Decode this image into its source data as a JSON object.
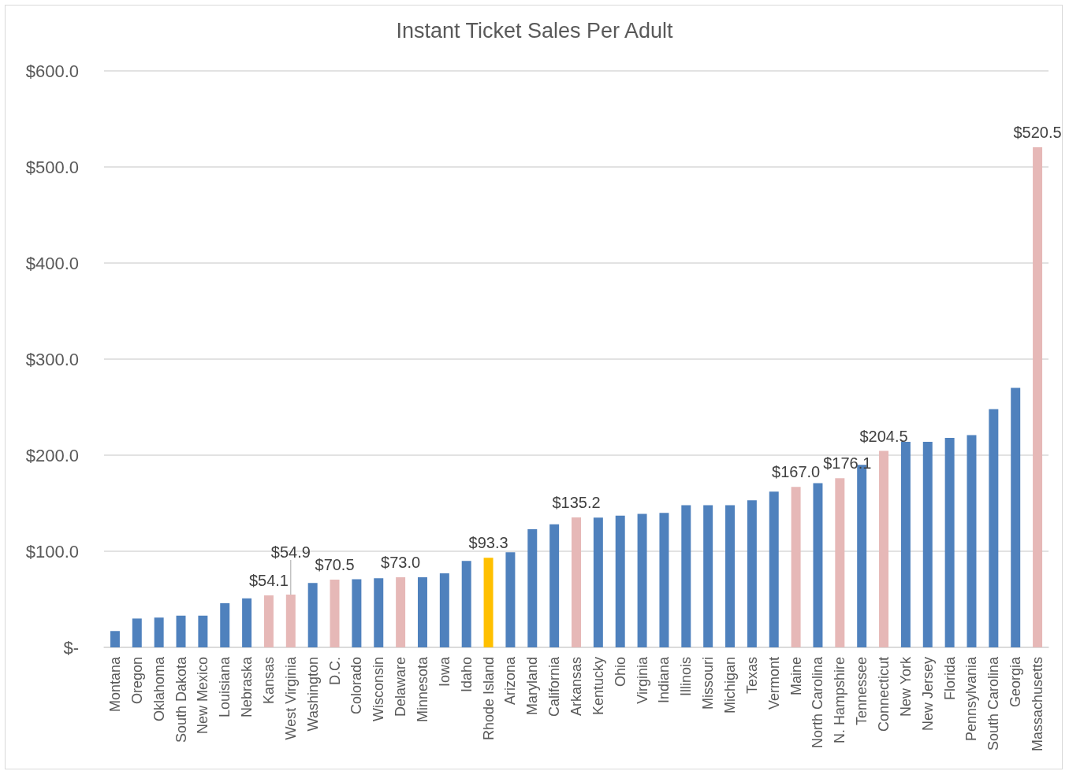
{
  "chart_data": {
    "type": "bar",
    "title": "Instant Ticket Sales Per Adult",
    "categories": [
      "Montana",
      "Oregon",
      "Oklahoma",
      "South Dakota",
      "New Mexico",
      "Louisiana",
      "Nebraska",
      "Kansas",
      "West Virginia",
      "Washington",
      "D.C.",
      "Colorado",
      "Wisconsin",
      "Delaware",
      "Minnesota",
      "Iowa",
      "Idaho",
      "Rhode Island",
      "Arizona",
      "Maryland",
      "California",
      "Arkansas",
      "Kentucky",
      "Ohio",
      "Virginia",
      "Indiana",
      "Illinois",
      "Missouri",
      "Michigan",
      "Texas",
      "Vermont",
      "Maine",
      "North Carolina",
      "N. Hampshire",
      "Tennessee",
      "Connecticut",
      "New York",
      "New Jersey",
      "Florida",
      "Pennsylvania",
      "South Carolina",
      "Georgia",
      "Massachusetts"
    ],
    "values": [
      17,
      30,
      31,
      33,
      33,
      46,
      51,
      54.1,
      54.9,
      67,
      70.5,
      71,
      72,
      73.0,
      73,
      77,
      90,
      93.3,
      99,
      123,
      128,
      135.2,
      135,
      137,
      139,
      140,
      148,
      148,
      148,
      153,
      162,
      167.0,
      171,
      176.1,
      190,
      204.5,
      214,
      214,
      218,
      221,
      248,
      270,
      520.5
    ],
    "colors": [
      "#4f81bd",
      "#4f81bd",
      "#4f81bd",
      "#4f81bd",
      "#4f81bd",
      "#4f81bd",
      "#4f81bd",
      "#e6b8b7",
      "#e6b8b7",
      "#4f81bd",
      "#e6b8b7",
      "#4f81bd",
      "#4f81bd",
      "#e6b8b7",
      "#4f81bd",
      "#4f81bd",
      "#4f81bd",
      "#ffc000",
      "#4f81bd",
      "#4f81bd",
      "#4f81bd",
      "#e6b8b7",
      "#4f81bd",
      "#4f81bd",
      "#4f81bd",
      "#4f81bd",
      "#4f81bd",
      "#4f81bd",
      "#4f81bd",
      "#4f81bd",
      "#4f81bd",
      "#e6b8b7",
      "#4f81bd",
      "#e6b8b7",
      "#4f81bd",
      "#e6b8b7",
      "#4f81bd",
      "#4f81bd",
      "#4f81bd",
      "#4f81bd",
      "#4f81bd",
      "#4f81bd",
      "#e6b8b7"
    ],
    "value_labels": [
      null,
      null,
      null,
      null,
      null,
      null,
      null,
      "$54.1",
      "$54.9",
      null,
      "$70.5",
      null,
      null,
      "$73.0",
      null,
      null,
      null,
      "$93.3",
      null,
      null,
      null,
      "$135.2",
      null,
      null,
      null,
      null,
      null,
      null,
      null,
      null,
      null,
      "$167.0",
      null,
      "$176.1",
      null,
      "$204.5",
      null,
      null,
      null,
      null,
      null,
      null,
      "$520.5"
    ],
    "ylim": [
      0,
      600
    ],
    "yticks": [
      {
        "value": 0,
        "label": "$-"
      },
      {
        "value": 100,
        "label": "$100.0"
      },
      {
        "value": 200,
        "label": "$200.0"
      },
      {
        "value": 300,
        "label": "$300.0"
      },
      {
        "value": 400,
        "label": "$400.0"
      },
      {
        "value": 500,
        "label": "$500.0"
      },
      {
        "value": 600,
        "label": "$600.0"
      }
    ],
    "grid": "y"
  }
}
